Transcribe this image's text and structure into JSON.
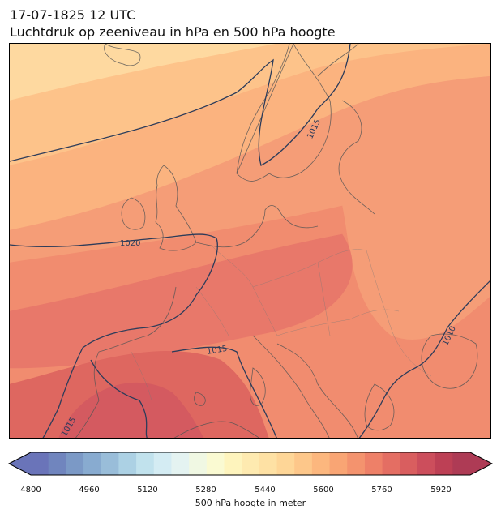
{
  "header": {
    "datetime": "17-07-1825 12 UTC",
    "subtitle": "Luchtdruk op zeeniveau in hPa en 500 hPa hoogte"
  },
  "map": {
    "isobar_labels": [
      "1015",
      "1020",
      "1015",
      "1015",
      "1010"
    ],
    "fill_colors": [
      "#fed9a0",
      "#fdc38a",
      "#fbb37f",
      "#f59d77",
      "#f18c6f",
      "#e8786a",
      "#de6760",
      "#d45a60"
    ]
  },
  "colorbar": {
    "label": "500 hPa hoogte in meter",
    "ticks": [
      "4800",
      "4960",
      "5120",
      "5280",
      "5440",
      "5600",
      "5760",
      "5920"
    ],
    "colors": [
      "#6a74b9",
      "#7085be",
      "#7b99c6",
      "#88abd0",
      "#99bdd9",
      "#acd1e4",
      "#c1e2ed",
      "#d4ecf3",
      "#e4f3f1",
      "#f0f8e3",
      "#fafad2",
      "#fef4bd",
      "#feeab0",
      "#fee1a4",
      "#fed697",
      "#fdc78a",
      "#fcb77e",
      "#f9a574",
      "#f4936e",
      "#ee8068",
      "#e46e63",
      "#d95e5f",
      "#cc4e5c",
      "#bd4055",
      "#ae3b55"
    ]
  }
}
